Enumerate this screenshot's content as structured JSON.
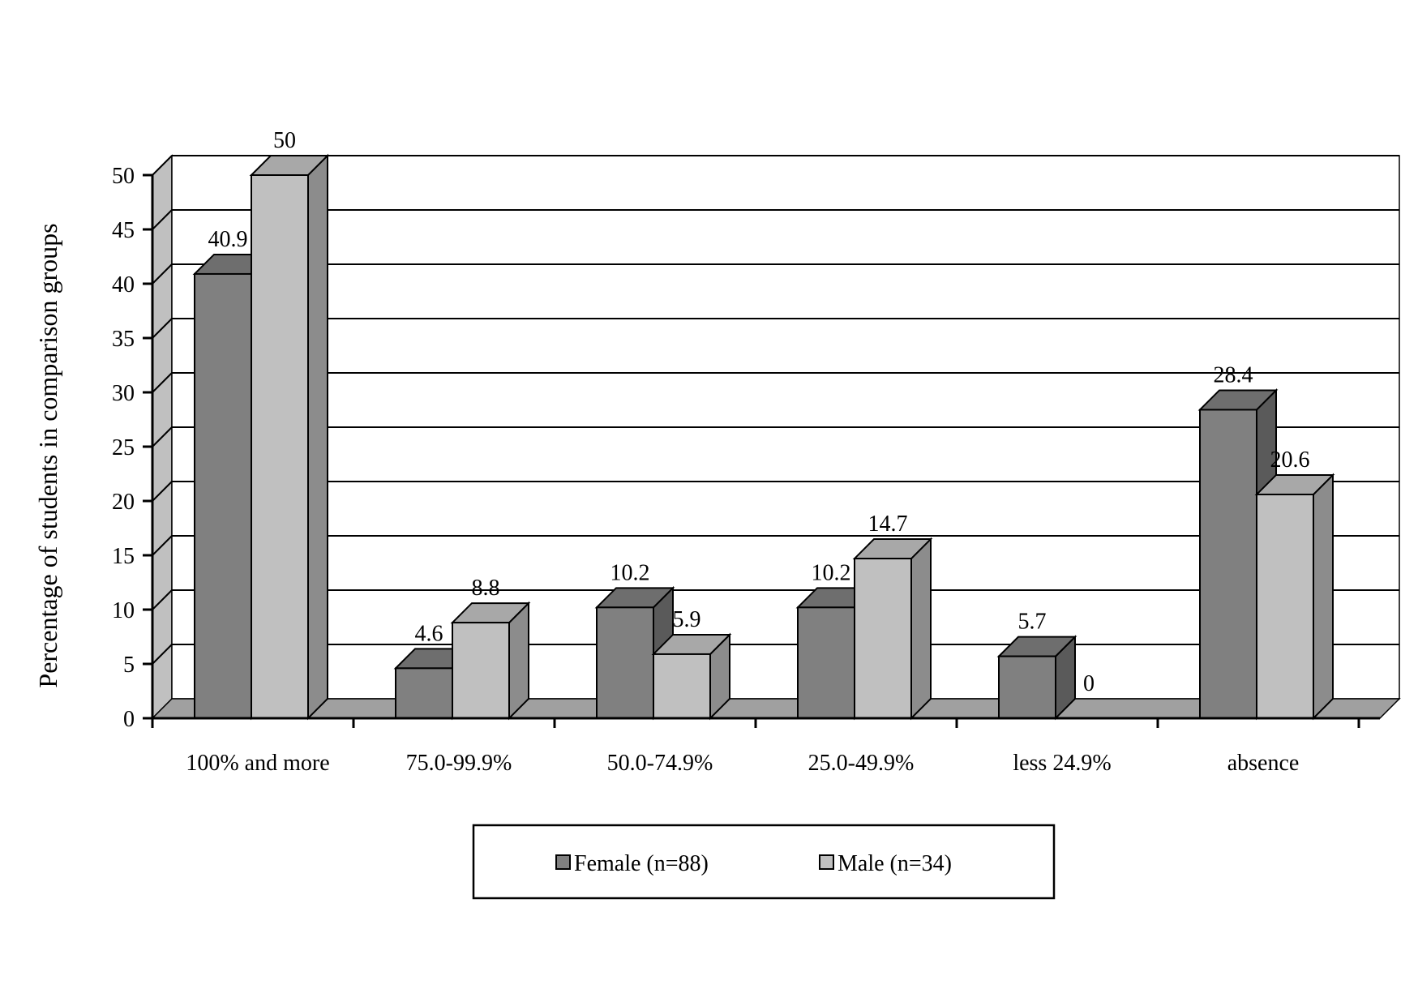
{
  "chart_data": {
    "type": "bar",
    "title": "",
    "xlabel": "",
    "ylabel": "Percentage of students in comparison groups",
    "ylim": [
      0,
      50
    ],
    "yticks": [
      0,
      5,
      10,
      15,
      20,
      25,
      30,
      35,
      40,
      45,
      50
    ],
    "grid": true,
    "style": "3d-clustered-column",
    "legend_position": "bottom",
    "categories": [
      "100% and more",
      "75.0-99.9%",
      "50.0-74.9%",
      "25.0-49.9%",
      "less 24.9%",
      "absence"
    ],
    "series": [
      {
        "name": "Female (n=88)",
        "values": [
          40.9,
          4.6,
          10.2,
          10.2,
          5.7,
          28.4
        ],
        "color": "#808080"
      },
      {
        "name": "Male (n=34)",
        "values": [
          50,
          8.8,
          5.9,
          14.7,
          0,
          20.6
        ],
        "color": "#c0c0c0"
      }
    ]
  }
}
